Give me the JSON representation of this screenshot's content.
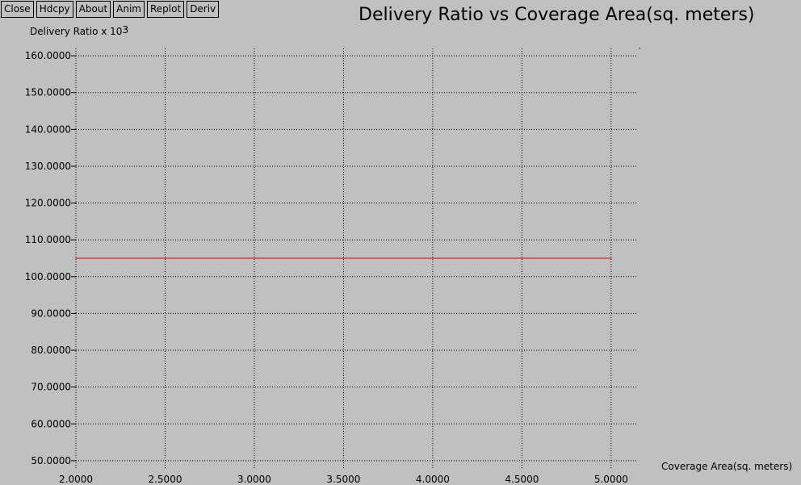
{
  "toolbar": {
    "buttons": [
      "Close",
      "Hdcpy",
      "About",
      "Anim",
      "Replot",
      "Deriv"
    ]
  },
  "colors": {
    "background": "#c0c0c0",
    "series": "#e00000",
    "grid": "#000000"
  },
  "chart_data": {
    "type": "line",
    "title": "Delivery Ratio vs Coverage Area(sq. meters)",
    "ylabel_text": "Delivery Ratio x 10",
    "ylabel_exponent": "3",
    "xlabel": "Coverage Area(sq. meters)",
    "xlim": [
      2.0,
      5.15
    ],
    "ylim": [
      48.0,
      162.0
    ],
    "x_ticks": [
      "2.0000",
      "2.5000",
      "3.0000",
      "3.5000",
      "4.0000",
      "4.5000",
      "5.0000"
    ],
    "y_ticks": [
      "50.0000",
      "60.0000",
      "70.0000",
      "80.0000",
      "90.0000",
      "100.0000",
      "110.0000",
      "120.0000",
      "130.0000",
      "140.0000",
      "150.0000",
      "160.0000"
    ],
    "grid": true,
    "series": [
      {
        "x": [
          2.0,
          2.5,
          3.0,
          3.5,
          4.0,
          4.5,
          5.0
        ],
        "y": [
          105.0,
          105.0,
          105.0,
          105.0,
          105.0,
          105.0,
          105.0
        ]
      }
    ]
  }
}
